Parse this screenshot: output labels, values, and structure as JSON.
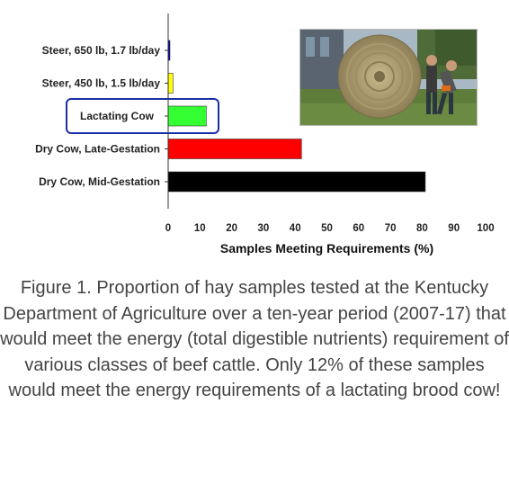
{
  "chart_data": {
    "type": "bar",
    "orientation": "horizontal",
    "categories": [
      "Steer, 650 lb, 1.7 lb/day",
      "Steer, 450 lb, 1.5 lb/day",
      "Lactating Cow",
      "Dry Cow, Late-Gestation",
      "Dry Cow, Mid-Gestation"
    ],
    "values": [
      0.5,
      1.5,
      12,
      42,
      81
    ],
    "colors": [
      "#0000aa",
      "#ffff00",
      "#33ff33",
      "#ff0000",
      "#000000"
    ],
    "highlighted_category": "Lactating Cow",
    "highlight_color": "#1b2fa8",
    "xlabel": "Samples Meeting Requirements (%)",
    "xlim": [
      0,
      100
    ],
    "xticks": [
      "0",
      "10",
      "20",
      "30",
      "40",
      "50",
      "60",
      "70",
      "80",
      "90",
      "100"
    ],
    "grid": false
  },
  "photo": {
    "description_icon": "hay-bale-photo"
  },
  "caption": "Figure 1. Proportion of hay samples tested at the Kentucky Department of Agriculture over a ten-year period (2007-17) that would meet the energy (total digestible nutrients) requirement of various classes of beef cattle. Only 12% of these samples would meet the energy requirements of a lactating brood cow!"
}
